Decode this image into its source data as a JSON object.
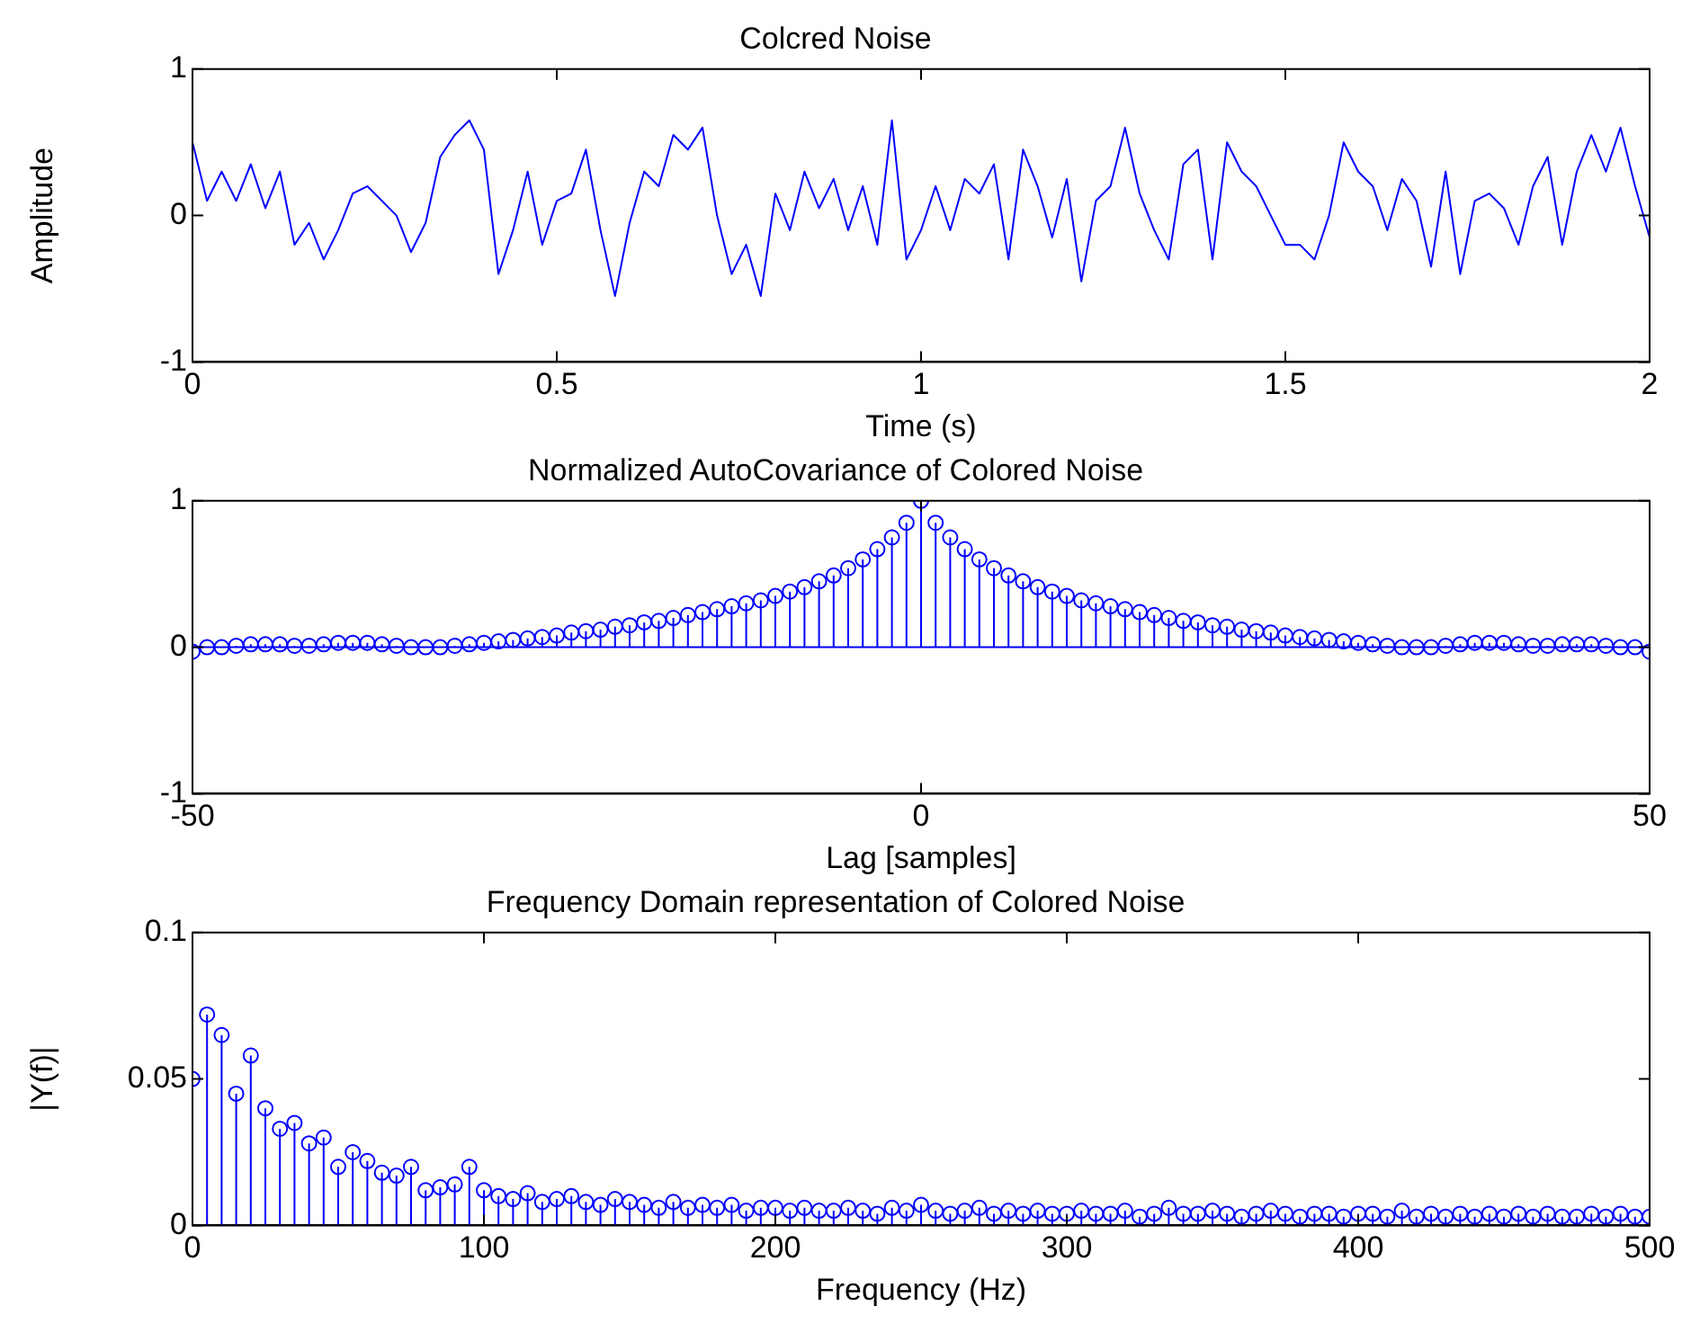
{
  "chart_data": [
    {
      "type": "line",
      "title": "Colcred Noise",
      "xlabel": "Time (s)",
      "ylabel": "Amplitude",
      "marker": "none",
      "xlim": [
        0,
        2
      ],
      "xticks": [
        0,
        0.5,
        1,
        1.5,
        2
      ],
      "ylim": [
        -1,
        1
      ],
      "yticks": [
        -1,
        0,
        1
      ],
      "x": [
        0,
        0.02,
        0.04,
        0.06,
        0.08,
        0.1,
        0.12,
        0.14,
        0.16,
        0.18,
        0.2,
        0.22,
        0.24,
        0.26,
        0.28,
        0.3,
        0.32,
        0.34,
        0.36,
        0.38,
        0.4,
        0.42,
        0.44,
        0.46,
        0.48,
        0.5,
        0.52,
        0.54,
        0.56,
        0.58,
        0.6,
        0.62,
        0.64,
        0.66,
        0.68,
        0.7,
        0.72,
        0.74,
        0.76,
        0.78,
        0.8,
        0.82,
        0.84,
        0.86,
        0.88,
        0.9,
        0.92,
        0.94,
        0.96,
        0.98,
        1,
        1.02,
        1.04,
        1.06,
        1.08,
        1.1,
        1.12,
        1.14,
        1.16,
        1.18,
        1.2,
        1.22,
        1.24,
        1.26,
        1.28,
        1.3,
        1.32,
        1.34,
        1.36,
        1.38,
        1.4,
        1.42,
        1.44,
        1.46,
        1.48,
        1.5,
        1.52,
        1.54,
        1.56,
        1.58,
        1.6,
        1.62,
        1.64,
        1.66,
        1.68,
        1.7,
        1.72,
        1.74,
        1.76,
        1.78,
        1.8,
        1.82,
        1.84,
        1.86,
        1.88,
        1.9,
        1.92,
        1.94,
        1.96,
        1.98,
        2
      ],
      "series": [
        {
          "color": "#0000ff",
          "values": [
            0.5,
            0.1,
            0.3,
            0.1,
            0.35,
            0.05,
            0.3,
            -0.2,
            -0.05,
            -0.3,
            -0.1,
            0.15,
            0.2,
            0.1,
            0,
            -0.25,
            -0.05,
            0.4,
            0.55,
            0.65,
            0.45,
            -0.4,
            -0.1,
            0.3,
            -0.2,
            0.1,
            0.15,
            0.45,
            -0.1,
            -0.55,
            -0.05,
            0.3,
            0.2,
            0.55,
            0.45,
            0.6,
            0,
            -0.4,
            -0.2,
            -0.55,
            0.15,
            -0.1,
            0.3,
            0.05,
            0.25,
            -0.1,
            0.2,
            -0.2,
            0.65,
            -0.3,
            -0.1,
            0.2,
            -0.1,
            0.25,
            0.15,
            0.35,
            -0.3,
            0.45,
            0.2,
            -0.15,
            0.25,
            -0.45,
            0.1,
            0.2,
            0.6,
            0.15,
            -0.1,
            -0.3,
            0.35,
            0.45,
            -0.3,
            0.5,
            0.3,
            0.2,
            0,
            -0.2,
            -0.2,
            -0.3,
            0,
            0.5,
            0.3,
            0.2,
            -0.1,
            0.25,
            0.1,
            -0.35,
            0.3,
            -0.4,
            0.1,
            0.15,
            0.05,
            -0.2,
            0.2,
            0.4,
            -0.2,
            0.3,
            0.55,
            0.3,
            0.6,
            0.2,
            -0.15
          ]
        }
      ]
    },
    {
      "type": "lollipop",
      "title": "Normalized AutoCovariance of Colored Noise",
      "xlabel": "Lag [samples]",
      "ref_lines": [
        {
          "axis": "y",
          "value": 0,
          "color": "#0000ff"
        }
      ],
      "marker": "circle",
      "xlim": [
        -50,
        50
      ],
      "xticks": [
        -50,
        0,
        50
      ],
      "ylim": [
        -1,
        1
      ],
      "yticks": [
        -1,
        0,
        1
      ],
      "x": [
        -50,
        -49,
        -48,
        -47,
        -46,
        -45,
        -44,
        -43,
        -42,
        -41,
        -40,
        -39,
        -38,
        -37,
        -36,
        -35,
        -34,
        -33,
        -32,
        -31,
        -30,
        -29,
        -28,
        -27,
        -26,
        -25,
        -24,
        -23,
        -22,
        -21,
        -20,
        -19,
        -18,
        -17,
        -16,
        -15,
        -14,
        -13,
        -12,
        -11,
        -10,
        -9,
        -8,
        -7,
        -6,
        -5,
        -4,
        -3,
        -2,
        -1,
        0,
        1,
        2,
        3,
        4,
        5,
        6,
        7,
        8,
        9,
        10,
        11,
        12,
        13,
        14,
        15,
        16,
        17,
        18,
        19,
        20,
        21,
        22,
        23,
        24,
        25,
        26,
        27,
        28,
        29,
        30,
        31,
        32,
        33,
        34,
        35,
        36,
        37,
        38,
        39,
        40,
        41,
        42,
        43,
        44,
        45,
        46,
        47,
        48,
        49,
        50
      ],
      "series": [
        {
          "color": "#0000ff",
          "values": [
            -0.03,
            0,
            0,
            0.01,
            0.02,
            0.02,
            0.02,
            0.01,
            0.01,
            0.02,
            0.03,
            0.03,
            0.03,
            0.02,
            0.01,
            0,
            0,
            0,
            0.01,
            0.02,
            0.03,
            0.04,
            0.05,
            0.06,
            0.07,
            0.08,
            0.1,
            0.11,
            0.12,
            0.14,
            0.15,
            0.17,
            0.18,
            0.2,
            0.22,
            0.24,
            0.26,
            0.28,
            0.3,
            0.32,
            0.35,
            0.38,
            0.41,
            0.45,
            0.49,
            0.54,
            0.6,
            0.67,
            0.75,
            0.85,
            1,
            0.85,
            0.75,
            0.67,
            0.6,
            0.54,
            0.49,
            0.45,
            0.41,
            0.38,
            0.35,
            0.32,
            0.3,
            0.28,
            0.26,
            0.24,
            0.22,
            0.2,
            0.18,
            0.17,
            0.15,
            0.14,
            0.12,
            0.11,
            0.1,
            0.08,
            0.07,
            0.06,
            0.05,
            0.04,
            0.03,
            0.02,
            0.01,
            0,
            0,
            0,
            0.01,
            0.02,
            0.03,
            0.03,
            0.03,
            0.02,
            0.01,
            0.01,
            0.02,
            0.02,
            0.02,
            0.01,
            0,
            0,
            -0.03
          ]
        }
      ]
    },
    {
      "type": "lollipop",
      "title": "Frequency Domain representation of Colored Noise",
      "xlabel": "Frequency (Hz)",
      "ylabel": "|Y(f)|",
      "marker": "circle",
      "xlim": [
        0,
        500
      ],
      "xticks": [
        0,
        100,
        200,
        300,
        400,
        500
      ],
      "ylim": [
        0,
        0.1
      ],
      "yticks": [
        0,
        0.05,
        0.1
      ],
      "x": [
        0,
        5,
        10,
        15,
        20,
        25,
        30,
        35,
        40,
        45,
        50,
        55,
        60,
        65,
        70,
        75,
        80,
        85,
        90,
        95,
        100,
        105,
        110,
        115,
        120,
        125,
        130,
        135,
        140,
        145,
        150,
        155,
        160,
        165,
        170,
        175,
        180,
        185,
        190,
        195,
        200,
        205,
        210,
        215,
        220,
        225,
        230,
        235,
        240,
        245,
        250,
        255,
        260,
        265,
        270,
        275,
        280,
        285,
        290,
        295,
        300,
        305,
        310,
        315,
        320,
        325,
        330,
        335,
        340,
        345,
        350,
        355,
        360,
        365,
        370,
        375,
        380,
        385,
        390,
        395,
        400,
        405,
        410,
        415,
        420,
        425,
        430,
        435,
        440,
        445,
        450,
        455,
        460,
        465,
        470,
        475,
        480,
        485,
        490,
        495,
        500
      ],
      "series": [
        {
          "color": "#0000ff",
          "values": [
            0.05,
            0.072,
            0.065,
            0.045,
            0.058,
            0.04,
            0.033,
            0.035,
            0.028,
            0.03,
            0.02,
            0.025,
            0.022,
            0.018,
            0.017,
            0.02,
            0.012,
            0.013,
            0.014,
            0.02,
            0.012,
            0.01,
            0.009,
            0.011,
            0.008,
            0.009,
            0.01,
            0.008,
            0.007,
            0.009,
            0.008,
            0.007,
            0.006,
            0.008,
            0.006,
            0.007,
            0.006,
            0.007,
            0.005,
            0.006,
            0.006,
            0.005,
            0.006,
            0.005,
            0.005,
            0.006,
            0.005,
            0.004,
            0.006,
            0.005,
            0.007,
            0.005,
            0.004,
            0.005,
            0.006,
            0.004,
            0.005,
            0.004,
            0.005,
            0.004,
            0.004,
            0.005,
            0.004,
            0.004,
            0.005,
            0.003,
            0.004,
            0.006,
            0.004,
            0.004,
            0.005,
            0.004,
            0.003,
            0.004,
            0.005,
            0.004,
            0.003,
            0.004,
            0.004,
            0.003,
            0.004,
            0.004,
            0.003,
            0.005,
            0.003,
            0.004,
            0.003,
            0.004,
            0.003,
            0.004,
            0.003,
            0.004,
            0.003,
            0.004,
            0.003,
            0.003,
            0.004,
            0.003,
            0.004,
            0.003,
            0.003
          ]
        }
      ]
    }
  ]
}
